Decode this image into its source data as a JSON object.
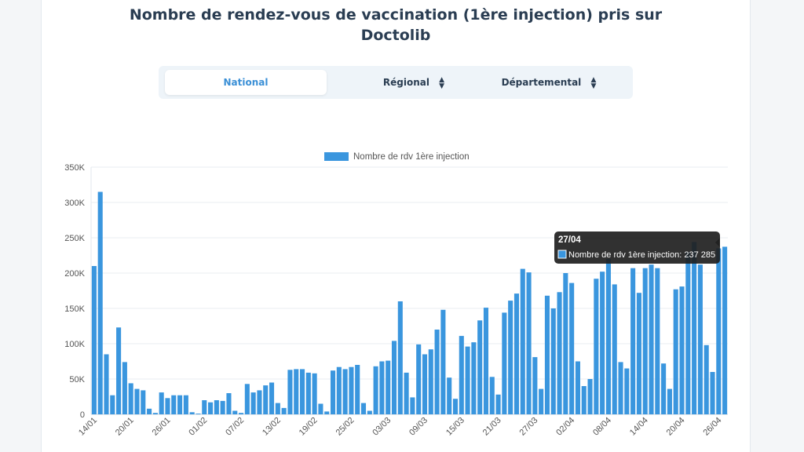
{
  "page": {
    "title_line1": "Nombre de rendez-vous de vaccination (1ère injection) pris sur",
    "title_line2": "Doctolib"
  },
  "tabs": [
    {
      "label": "National",
      "active": true,
      "sortable": false
    },
    {
      "label": "Régional",
      "active": false,
      "sortable": true
    },
    {
      "label": "Départemental",
      "active": false,
      "sortable": true
    }
  ],
  "colors": {
    "bar": "#3a96de",
    "title": "#2a3d52",
    "accent": "#3a8fd6",
    "tooltip_bg": "#1f1f1f"
  },
  "chart_data": {
    "type": "bar",
    "legend": "Nombre de rdv 1ère injection",
    "legend_position": "top-center",
    "grid": true,
    "ylim": [
      0,
      350000
    ],
    "yticks": [
      0,
      50000,
      100000,
      150000,
      200000,
      250000,
      300000,
      350000
    ],
    "ytick_labels": [
      "0",
      "50K",
      "100K",
      "150K",
      "200K",
      "250K",
      "300K",
      "350K"
    ],
    "x_tick_labels": [
      "14/01",
      "20/01",
      "26/01",
      "01/02",
      "07/02",
      "13/02",
      "19/02",
      "25/02",
      "03/03",
      "09/03",
      "15/03",
      "21/03",
      "27/03",
      "02/04",
      "08/04",
      "14/04",
      "20/04",
      "26/04"
    ],
    "x_tick_every": 6,
    "values": [
      210000,
      315000,
      85000,
      27000,
      123000,
      74000,
      44000,
      36000,
      34000,
      8000,
      2000,
      31000,
      23000,
      27000,
      27000,
      27000,
      3000,
      1000,
      20000,
      17000,
      20000,
      19000,
      30000,
      5000,
      2000,
      43000,
      31000,
      34000,
      41000,
      45000,
      16000,
      9000,
      63000,
      64000,
      64000,
      59000,
      58000,
      15000,
      4000,
      62000,
      67000,
      64000,
      67000,
      70000,
      16000,
      5000,
      68000,
      75000,
      76000,
      104000,
      160000,
      59000,
      24000,
      99000,
      85000,
      92000,
      120000,
      148000,
      52000,
      22000,
      111000,
      96000,
      102000,
      133000,
      151000,
      53000,
      28000,
      144000,
      161000,
      171000,
      206000,
      201000,
      81000,
      36000,
      168000,
      150000,
      173000,
      200000,
      186000,
      75000,
      40000,
      50000,
      192000,
      202000,
      220000,
      184000,
      74000,
      65000,
      207000,
      172000,
      207000,
      212000,
      207000,
      72000,
      36000,
      177000,
      181000,
      230000,
      244000,
      212000,
      98000,
      60000,
      235000,
      237285
    ],
    "tooltip": {
      "date": "27/04",
      "series": "Nombre de rdv 1ère injection",
      "value": "237 285"
    }
  }
}
